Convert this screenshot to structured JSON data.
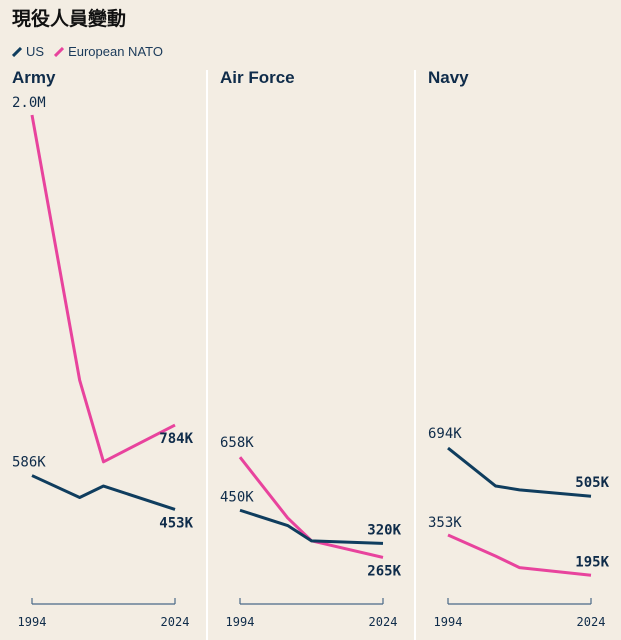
{
  "title": "現役人員變動",
  "legend": [
    {
      "name": "US",
      "color": "#0f3d5e"
    },
    {
      "name": "European NATO",
      "color": "#e8439d"
    }
  ],
  "colors": {
    "us": "#0f3d5e",
    "nato": "#e8439d",
    "axis": "#4a6a88",
    "divider": "#ffffff"
  },
  "chart_data": [
    {
      "type": "line",
      "title": "Army",
      "x": [
        1994,
        2004,
        2009,
        2024
      ],
      "xticks": [
        "1994",
        "2024"
      ],
      "ylim": [
        0,
        2000000
      ],
      "series": [
        {
          "name": "European NATO",
          "values": [
            2000000,
            960000,
            640000,
            784000
          ],
          "labels": [
            "2.0M",
            "784K"
          ]
        },
        {
          "name": "US",
          "values": [
            586000,
            500000,
            545000,
            453000
          ],
          "labels": [
            "586K",
            "453K"
          ]
        }
      ]
    },
    {
      "type": "line",
      "title": "Air Force",
      "x": [
        1994,
        2004,
        2009,
        2024
      ],
      "xticks": [
        "1994",
        "2024"
      ],
      "ylim": [
        0,
        2000000
      ],
      "series": [
        {
          "name": "European NATO",
          "values": [
            658000,
            420000,
            330000,
            265000
          ],
          "labels": [
            "658K",
            "265K"
          ]
        },
        {
          "name": "US",
          "values": [
            450000,
            390000,
            330000,
            320000
          ],
          "labels": [
            "450K",
            "320K"
          ]
        }
      ]
    },
    {
      "type": "line",
      "title": "Navy",
      "x": [
        1994,
        2004,
        2009,
        2024
      ],
      "xticks": [
        "1994",
        "2024"
      ],
      "ylim": [
        0,
        2000000
      ],
      "series": [
        {
          "name": "US",
          "values": [
            694000,
            545000,
            530000,
            505000
          ],
          "labels": [
            "694K",
            "505K"
          ]
        },
        {
          "name": "European NATO",
          "values": [
            353000,
            270000,
            225000,
            195000
          ],
          "labels": [
            "353K",
            "195K"
          ]
        }
      ]
    }
  ]
}
